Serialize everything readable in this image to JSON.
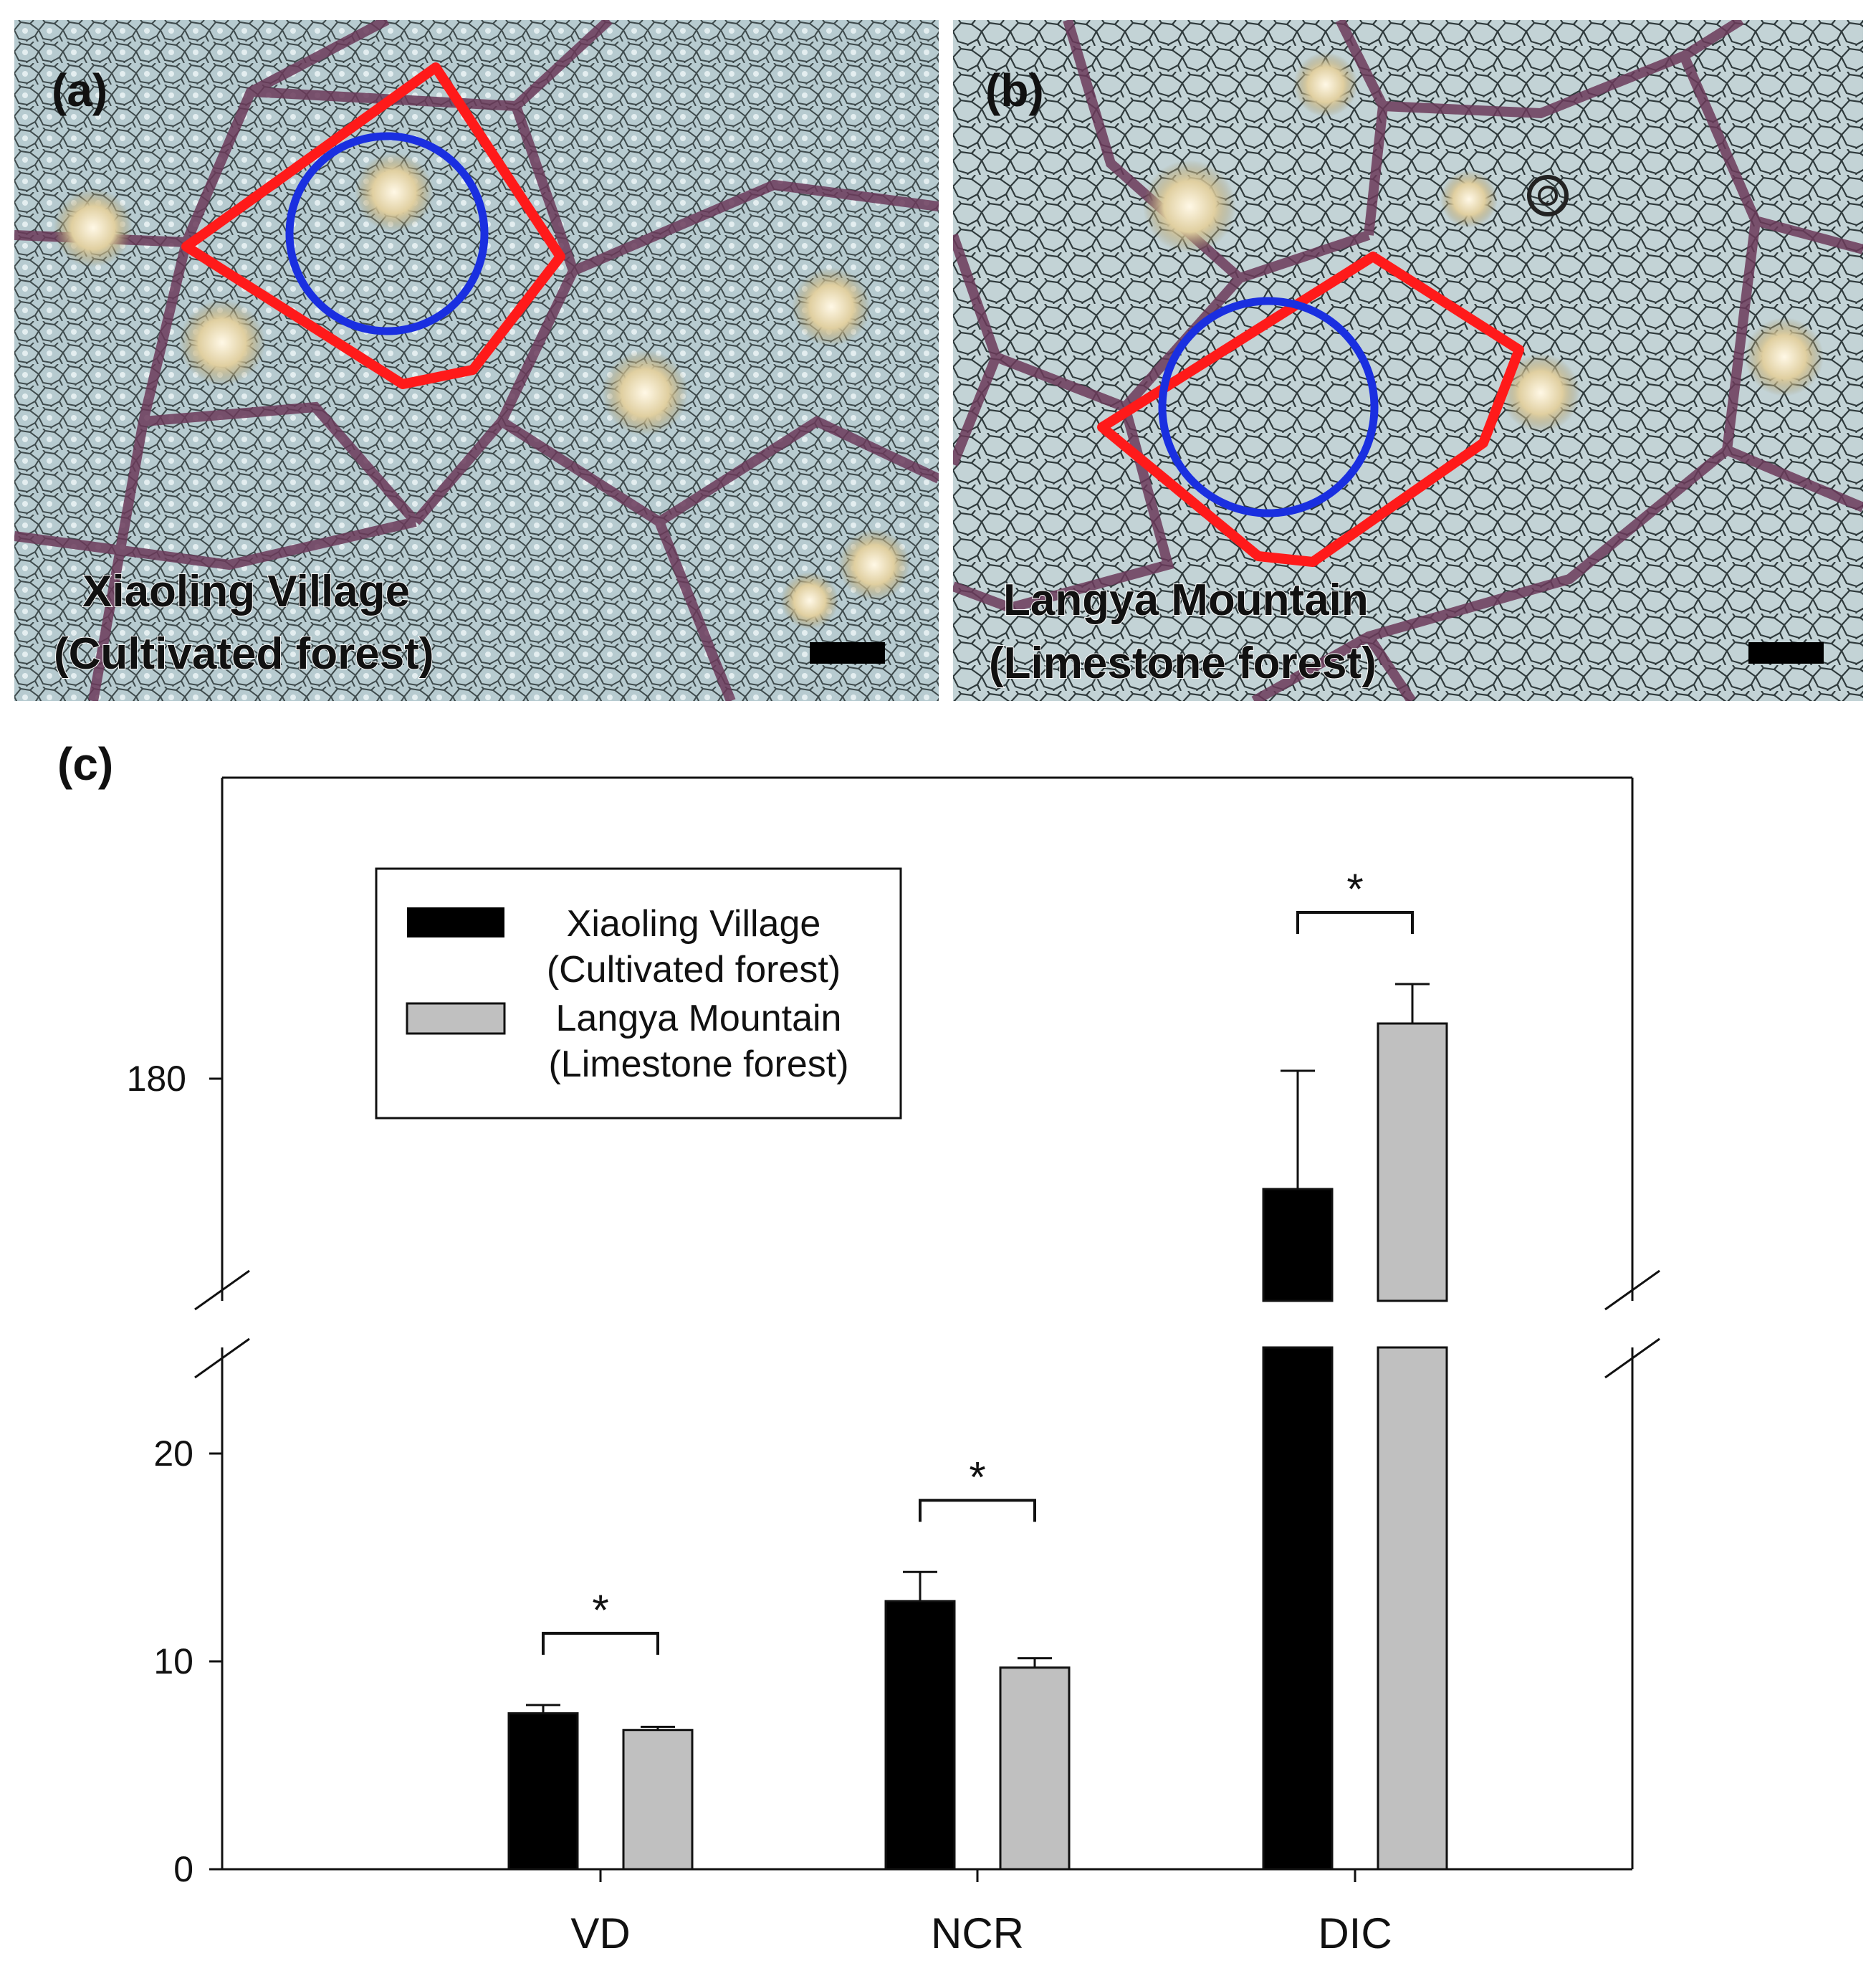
{
  "panels": {
    "a": {
      "letter": "(a)",
      "caption_line1": "Xiaoling Village",
      "caption_line2": "(Cultivated forest)"
    },
    "b": {
      "letter": "(b)",
      "caption_line1": "Langya Mountain",
      "caption_line2": "(Limestone forest)"
    },
    "c": {
      "letter": "(c)"
    }
  },
  "colors": {
    "polygon": "#ff1a1a",
    "circle": "#1a2fe0",
    "series1": "#000000",
    "series2": "#c0c0c0"
  },
  "chart_data": {
    "type": "bar",
    "categories": [
      "VD",
      "NCR",
      "DIC"
    ],
    "series": [
      {
        "name": "Xiaoling Village\n(Cultivated forest)",
        "values": [
          7.5,
          12.9,
          166
        ],
        "errors": [
          0.4,
          1.4,
          15
        ],
        "color": "#000000"
      },
      {
        "name": "Langya Mountain\n(Limestone forest)",
        "values": [
          6.7,
          9.7,
          187
        ],
        "errors": [
          0.15,
          0.45,
          5
        ],
        "color": "#c0c0c0"
      }
    ],
    "legend": {
      "entry1_line1": "Xiaoling Village",
      "entry1_line2": "(Cultivated forest)",
      "entry2_line1": "Langya Mountain",
      "entry2_line2": "(Limestone forest)",
      "placement": "top-left"
    },
    "yticks_lower": [
      "0",
      "10",
      "20"
    ],
    "yticks_upper": [
      "180"
    ],
    "axis_break": true,
    "ylim_lower": [
      0,
      25
    ],
    "ylim_upper": [
      158,
      202
    ],
    "significance": [
      "*",
      "*",
      "*"
    ],
    "xlabel": "",
    "ylabel": "",
    "title": ""
  }
}
